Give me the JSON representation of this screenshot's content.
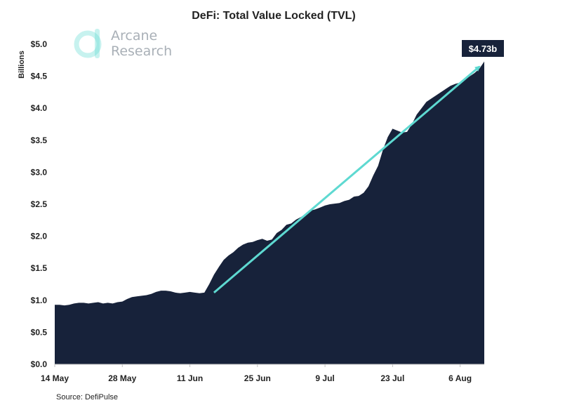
{
  "colors": {
    "area": "#17223a",
    "trend": "#5ed9d1",
    "logo_accent": "#5ed9d1",
    "callout_bg": "#17223a",
    "text": "#222222"
  },
  "logo": {
    "icon": "arcane-logo-icon",
    "line1": "Arcane",
    "line2": "Research"
  },
  "source": "Source: DefiPulse",
  "chart_data": {
    "type": "area",
    "title": "DeFi: Total Value Locked (TVL)",
    "xlabel": "",
    "ylabel": "Billions",
    "ylim": [
      0,
      5.0
    ],
    "yticks": [
      {
        "value": 0.0,
        "label": "$0.0"
      },
      {
        "value": 0.5,
        "label": "$0.5"
      },
      {
        "value": 1.0,
        "label": "$1.0"
      },
      {
        "value": 1.5,
        "label": "$1.5"
      },
      {
        "value": 2.0,
        "label": "$2.0"
      },
      {
        "value": 2.5,
        "label": "$2.5"
      },
      {
        "value": 3.0,
        "label": "$3.0"
      },
      {
        "value": 3.5,
        "label": "$3.5"
      },
      {
        "value": 4.0,
        "label": "$4.0"
      },
      {
        "value": 4.5,
        "label": "$4.5"
      },
      {
        "value": 5.0,
        "label": "$5.0"
      }
    ],
    "xlim": [
      "2020-05-14",
      "2020-08-11"
    ],
    "xticks": [
      {
        "value": "2020-05-14",
        "label": "14 May"
      },
      {
        "value": "2020-05-28",
        "label": "28 May"
      },
      {
        "value": "2020-06-11",
        "label": "11 Jun"
      },
      {
        "value": "2020-06-25",
        "label": "25 Jun"
      },
      {
        "value": "2020-07-09",
        "label": "9 Jul"
      },
      {
        "value": "2020-07-23",
        "label": "23 Jul"
      },
      {
        "value": "2020-08-06",
        "label": "6 Aug"
      }
    ],
    "grid": false,
    "legend": "none",
    "series": [
      {
        "name": "",
        "x": [
          "2020-05-14",
          "2020-05-15",
          "2020-05-16",
          "2020-05-17",
          "2020-05-18",
          "2020-05-19",
          "2020-05-20",
          "2020-05-21",
          "2020-05-22",
          "2020-05-23",
          "2020-05-24",
          "2020-05-25",
          "2020-05-26",
          "2020-05-27",
          "2020-05-28",
          "2020-05-29",
          "2020-05-30",
          "2020-05-31",
          "2020-06-01",
          "2020-06-02",
          "2020-06-03",
          "2020-06-04",
          "2020-06-05",
          "2020-06-06",
          "2020-06-07",
          "2020-06-08",
          "2020-06-09",
          "2020-06-10",
          "2020-06-11",
          "2020-06-12",
          "2020-06-13",
          "2020-06-14",
          "2020-06-15",
          "2020-06-16",
          "2020-06-17",
          "2020-06-18",
          "2020-06-19",
          "2020-06-20",
          "2020-06-21",
          "2020-06-22",
          "2020-06-23",
          "2020-06-24",
          "2020-06-25",
          "2020-06-26",
          "2020-06-27",
          "2020-06-28",
          "2020-06-29",
          "2020-06-30",
          "2020-07-01",
          "2020-07-02",
          "2020-07-03",
          "2020-07-04",
          "2020-07-05",
          "2020-07-06",
          "2020-07-07",
          "2020-07-08",
          "2020-07-09",
          "2020-07-10",
          "2020-07-11",
          "2020-07-12",
          "2020-07-13",
          "2020-07-14",
          "2020-07-15",
          "2020-07-16",
          "2020-07-17",
          "2020-07-18",
          "2020-07-19",
          "2020-07-20",
          "2020-07-21",
          "2020-07-22",
          "2020-07-23",
          "2020-07-24",
          "2020-07-25",
          "2020-07-26",
          "2020-07-27",
          "2020-07-28",
          "2020-07-29",
          "2020-07-30",
          "2020-07-31",
          "2020-08-01",
          "2020-08-02",
          "2020-08-03",
          "2020-08-04",
          "2020-08-05",
          "2020-08-06",
          "2020-08-07",
          "2020-08-08",
          "2020-08-09",
          "2020-08-10",
          "2020-08-11"
        ],
        "values": [
          0.93,
          0.93,
          0.92,
          0.93,
          0.95,
          0.96,
          0.96,
          0.95,
          0.96,
          0.97,
          0.95,
          0.96,
          0.95,
          0.97,
          0.98,
          1.02,
          1.05,
          1.06,
          1.07,
          1.08,
          1.1,
          1.13,
          1.15,
          1.15,
          1.14,
          1.12,
          1.11,
          1.12,
          1.13,
          1.12,
          1.11,
          1.12,
          1.25,
          1.4,
          1.52,
          1.63,
          1.7,
          1.75,
          1.82,
          1.87,
          1.9,
          1.91,
          1.94,
          1.96,
          1.93,
          1.95,
          2.05,
          2.1,
          2.18,
          2.2,
          2.26,
          2.3,
          2.35,
          2.4,
          2.42,
          2.45,
          2.48,
          2.5,
          2.51,
          2.52,
          2.55,
          2.57,
          2.62,
          2.63,
          2.68,
          2.78,
          2.95,
          3.1,
          3.35,
          3.55,
          3.68,
          3.65,
          3.62,
          3.63,
          3.75,
          3.9,
          4.0,
          4.1,
          4.15,
          4.2,
          4.25,
          4.3,
          4.35,
          4.38,
          4.4,
          4.45,
          4.5,
          4.55,
          4.62,
          4.73
        ]
      }
    ],
    "trend": {
      "from": {
        "x": "2020-06-16",
        "y": 1.12
      },
      "to": {
        "x": "2020-08-10",
        "y": 4.65
      }
    },
    "annotations": [
      {
        "x": "2020-08-11",
        "y": 4.73,
        "text": "$4.73b"
      }
    ]
  }
}
